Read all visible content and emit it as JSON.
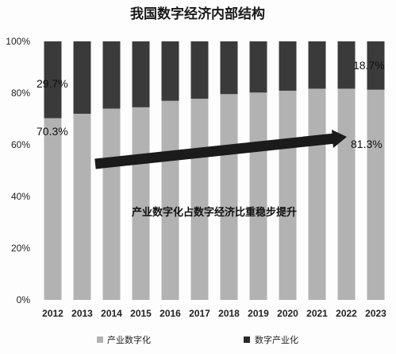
{
  "chart_data": {
    "type": "bar",
    "stacked": true,
    "title": "我国数字经济内部结构",
    "categories": [
      "2012",
      "2013",
      "2014",
      "2015",
      "2016",
      "2017",
      "2018",
      "2019",
      "2020",
      "2021",
      "2022",
      "2023"
    ],
    "series": [
      {
        "name": "产业数字化",
        "values": [
          70.3,
          72,
          74,
          74.5,
          77,
          77.8,
          79.6,
          80.2,
          80.9,
          81.7,
          81.7,
          81.3
        ],
        "color": "#b2b2b2"
      },
      {
        "name": "数字产业化",
        "values": [
          29.7,
          28,
          26,
          25.5,
          23,
          22.2,
          20.4,
          19.8,
          19.1,
          18.3,
          18.3,
          18.7
        ],
        "color": "#3a3a3a"
      }
    ],
    "ylim": [
      0,
      100
    ],
    "yticks": [
      "0%",
      "20%",
      "40%",
      "60%",
      "80%",
      "100%"
    ],
    "data_labels": {
      "first_top": "29.7%",
      "first_bottom": "70.3%",
      "last_top": "18.7%",
      "last_bottom": "81.3%"
    },
    "annotation": "产业数字化占数字经济比重稳步提升",
    "legend_position": "bottom",
    "grid": false
  }
}
